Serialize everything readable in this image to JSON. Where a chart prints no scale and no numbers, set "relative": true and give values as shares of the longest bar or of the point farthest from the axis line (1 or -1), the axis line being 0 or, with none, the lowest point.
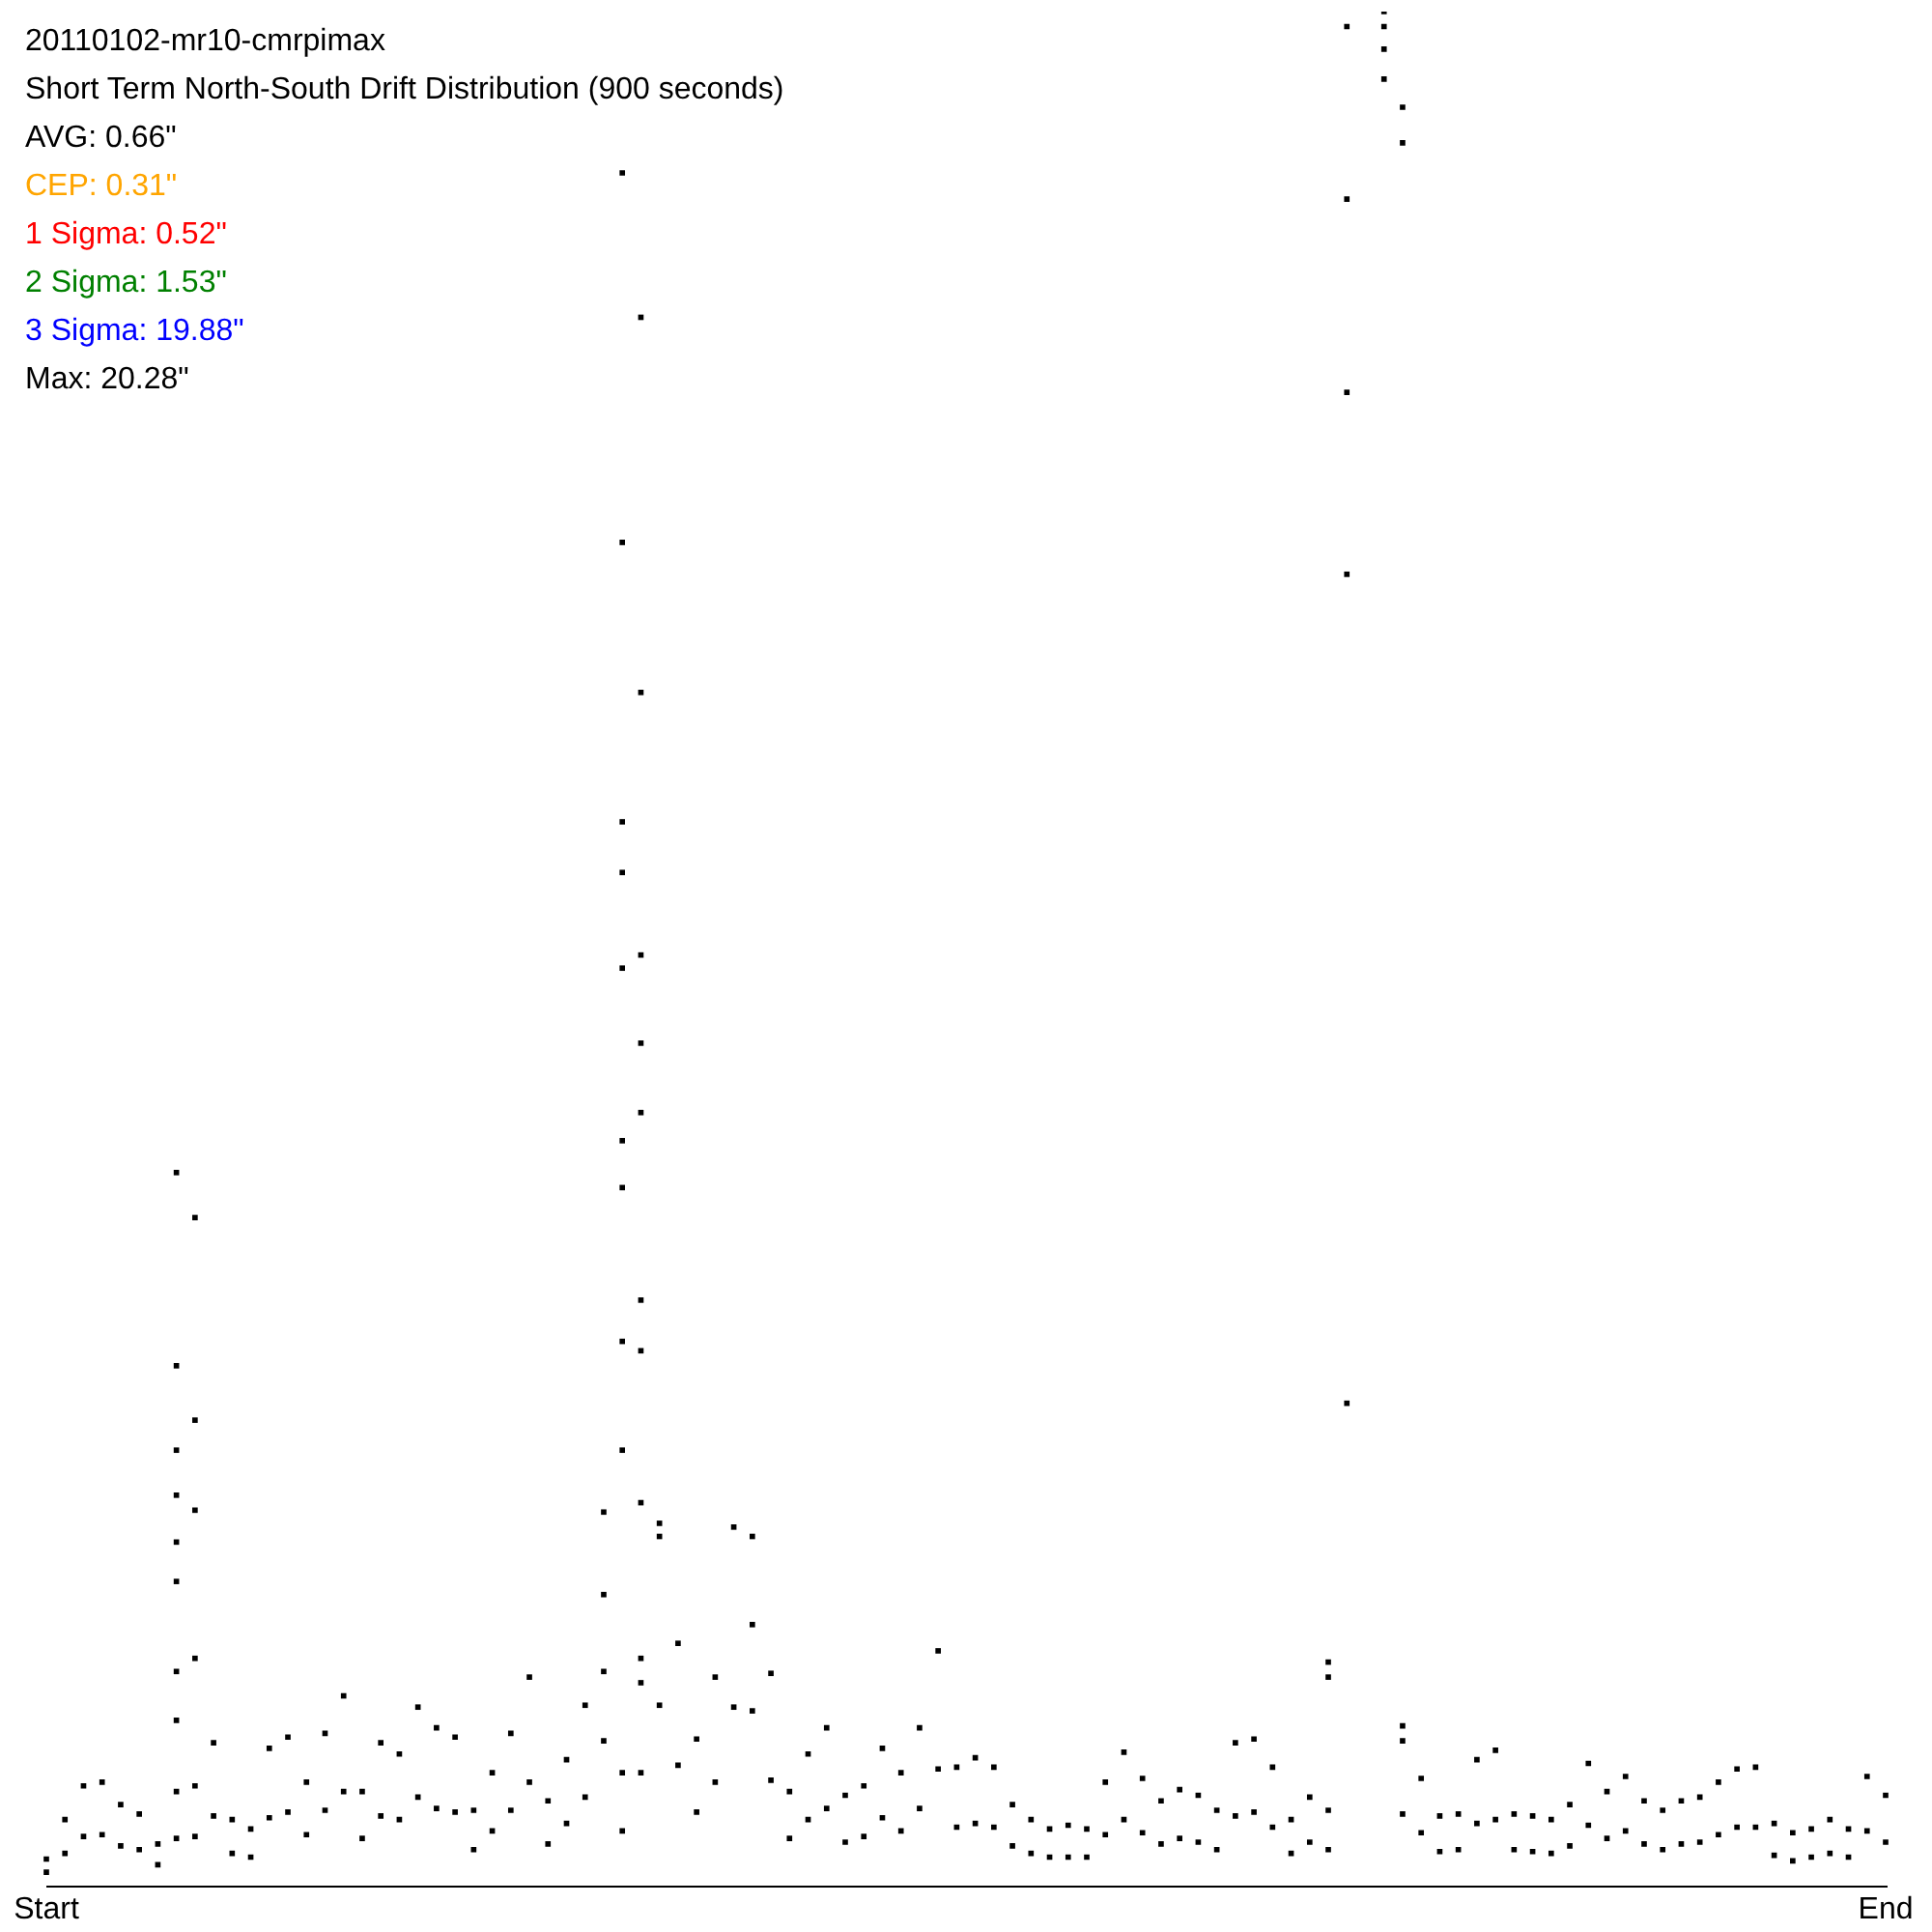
{
  "chart_data": {
    "type": "scatter",
    "title": "20110102-mr10-cmrpimax",
    "subtitle": "Short Term North-South Drift Distribution (900 seconds)",
    "annotations": [
      "AVG: 0.66\"",
      "CEP: 0.31\"",
      "1 Sigma: 0.52\"",
      "2 Sigma: 1.53\"",
      "3 Sigma: 19.88\"",
      "Max: 20.28\""
    ],
    "relative": true,
    "marker": "square",
    "categories": [
      "Start",
      null,
      null,
      null,
      null,
      null,
      null,
      null,
      null,
      null,
      null,
      null,
      null,
      null,
      null,
      null,
      null,
      null,
      null,
      null,
      null,
      null,
      null,
      null,
      null,
      null,
      null,
      null,
      null,
      null,
      null,
      null,
      null,
      null,
      null,
      null,
      null,
      null,
      null,
      null,
      null,
      null,
      null,
      null,
      null,
      null,
      null,
      null,
      null,
      null,
      null,
      null,
      null,
      null,
      null,
      null,
      null,
      null,
      null,
      null,
      null,
      null,
      null,
      null,
      null,
      null,
      null,
      null,
      null,
      null,
      null,
      null,
      null,
      null,
      null,
      null,
      null,
      null,
      null,
      null,
      null,
      null,
      null,
      null,
      null,
      null,
      null,
      null,
      null,
      null,
      null,
      null,
      null,
      null,
      null,
      null,
      null,
      null,
      null,
      "End"
    ],
    "series": [
      {
        "color": "#000000",
        "values": [
          0.015,
          0.036,
          0.054,
          0.056,
          0.044,
          0.039,
          0.023,
          0.051,
          0.054,
          0.077,
          0.036,
          0.031,
          0.074,
          0.08,
          0.056,
          0.082,
          0.102,
          0.051,
          0.077,
          0.071,
          0.096,
          0.085,
          0.08,
          0.041,
          0.061,
          0.082,
          0.112,
          0.046,
          0.068,
          0.097,
          0.156,
          0.061,
          0.122,
          0.194,
          0.13,
          0.079,
          0.112,
          0.192,
          0.187,
          0.114,
          0.051,
          0.071,
          0.085,
          0.049,
          0.054,
          0.074,
          0.061,
          0.085,
          0.126,
          0.064,
          0.069,
          0.064,
          0.044,
          0.036,
          0.031,
          0.033,
          0.031,
          0.056,
          0.072,
          0.058,
          0.046,
          0.052,
          0.049,
          0.041,
          0.077,
          0.079,
          0.064,
          0.036,
          0.048,
          0.041,
          0.992,
          null,
          1,
          0.078,
          0.058,
          0.038,
          0.039,
          0.068,
          0.073,
          0.039,
          0.038,
          0.036,
          0.044,
          0.066,
          0.051,
          0.059,
          0.046,
          0.041,
          0.046,
          0.048,
          0.056,
          0.063,
          0.064,
          0.034,
          0.029,
          0.031,
          0.036,
          0.031,
          0.059,
          0.049
        ]
      },
      {
        "color": "#000000",
        "values": [
          0.008,
          0.018,
          0.027,
          0.028,
          0.022,
          0.02,
          0.012,
          0.026,
          0.027,
          0.038,
          0.018,
          0.016,
          0.037,
          0.04,
          0.028,
          0.041,
          0.051,
          0.026,
          0.038,
          0.036,
          0.048,
          0.042,
          0.04,
          0.02,
          0.03,
          0.041,
          0.056,
          0.023,
          0.034,
          0.048,
          0.078,
          0.03,
          0.061,
          0.097,
          0.065,
          0.04,
          0.056,
          0.096,
          0.094,
          0.057,
          0.026,
          0.036,
          0.042,
          0.024,
          0.027,
          0.037,
          0.03,
          0.042,
          0.063,
          0.032,
          0.034,
          0.032,
          0.022,
          0.018,
          0.016,
          0.016,
          0.016,
          0.028,
          0.036,
          0.029,
          0.023,
          0.026,
          0.024,
          0.02,
          0.038,
          0.04,
          0.032,
          0.018,
          0.024,
          0.02,
          null,
          null,
          null,
          0.039,
          0.029,
          0.019,
          0.02,
          0.034,
          0.036,
          0.02,
          0.019,
          0.018,
          0.022,
          0.033,
          0.026,
          0.03,
          0.023,
          0.02,
          0.023,
          0.024,
          0.028,
          0.032,
          0.032,
          0.017,
          0.014,
          0.016,
          0.018,
          0.016,
          0.03,
          0.024
        ]
      },
      {
        "color": "#000000",
        "values": [
          null,
          null,
          null,
          null,
          null,
          null,
          null,
          0.381,
          0.357,
          null,
          null,
          null,
          null,
          null,
          null,
          null,
          null,
          null,
          null,
          null,
          null,
          null,
          null,
          null,
          null,
          null,
          null,
          null,
          null,
          null,
          0.2,
          0.914,
          0.837,
          0.187,
          null,
          null,
          null,
          null,
          0.14,
          null,
          null,
          null,
          null,
          null,
          null,
          null,
          null,
          null,
          null,
          null,
          null,
          null,
          null,
          null,
          null,
          null,
          null,
          null,
          null,
          null,
          null,
          null,
          null,
          null,
          null,
          null,
          null,
          null,
          null,
          0.12,
          0.9,
          null,
          0.992,
          0.949,
          null,
          null,
          null,
          null,
          null,
          null,
          null,
          null,
          null,
          null,
          null,
          null,
          null,
          null,
          null,
          null,
          null,
          null,
          null,
          null,
          null,
          null,
          null,
          null,
          null,
          null
        ]
      },
      {
        "color": "#000000",
        "values": [
          null,
          null,
          null,
          null,
          null,
          null,
          null,
          0.278,
          0.249,
          null,
          null,
          null,
          null,
          null,
          null,
          null,
          null,
          null,
          null,
          null,
          null,
          null,
          null,
          null,
          null,
          null,
          null,
          null,
          null,
          null,
          0.115,
          0.717,
          0.637,
          null,
          null,
          null,
          null,
          null,
          null,
          null,
          null,
          null,
          null,
          null,
          null,
          null,
          null,
          null,
          null,
          null,
          null,
          null,
          null,
          null,
          null,
          null,
          null,
          null,
          null,
          null,
          null,
          null,
          null,
          null,
          null,
          null,
          null,
          null,
          null,
          0.112,
          0.797,
          null,
          0.98,
          0.93,
          null,
          null,
          null,
          null,
          null,
          null,
          null,
          null,
          null,
          null,
          null,
          null,
          null,
          null,
          null,
          null,
          null,
          null,
          null,
          null,
          null,
          null,
          null,
          null,
          null,
          null
        ]
      },
      {
        "color": "#000000",
        "values": [
          null,
          null,
          null,
          null,
          null,
          null,
          null,
          0.233,
          0.201,
          null,
          null,
          null,
          null,
          null,
          null,
          null,
          null,
          null,
          null,
          null,
          null,
          null,
          null,
          null,
          null,
          null,
          null,
          null,
          null,
          null,
          null,
          0.568,
          0.497,
          null,
          null,
          null,
          null,
          null,
          null,
          null,
          null,
          null,
          null,
          null,
          null,
          null,
          null,
          null,
          null,
          null,
          null,
          null,
          null,
          null,
          null,
          null,
          null,
          null,
          null,
          null,
          null,
          null,
          null,
          null,
          null,
          null,
          null,
          null,
          null,
          null,
          0.7,
          null,
          0.964,
          0.086,
          null,
          null,
          null,
          null,
          null,
          null,
          null,
          null,
          null,
          null,
          null,
          null,
          null,
          null,
          null,
          null,
          null,
          null,
          null,
          null,
          null,
          null,
          null,
          null,
          null,
          null
        ]
      },
      {
        "color": "#000000",
        "values": [
          null,
          null,
          null,
          null,
          null,
          null,
          null,
          0.209,
          0.122,
          null,
          null,
          null,
          null,
          null,
          null,
          null,
          null,
          null,
          null,
          null,
          null,
          null,
          null,
          null,
          null,
          null,
          null,
          null,
          null,
          null,
          null,
          0.541,
          0.45,
          null,
          null,
          null,
          null,
          null,
          null,
          null,
          null,
          null,
          null,
          null,
          null,
          null,
          null,
          null,
          null,
          null,
          null,
          null,
          null,
          null,
          null,
          null,
          null,
          null,
          null,
          null,
          null,
          null,
          null,
          null,
          null,
          null,
          null,
          null,
          null,
          null,
          0.258,
          null,
          null,
          null,
          null,
          null,
          null,
          null,
          null,
          null,
          null,
          null,
          null,
          null,
          null,
          null,
          null,
          null,
          null,
          null,
          null,
          null,
          null,
          null,
          null,
          null,
          null,
          null,
          null,
          null
        ]
      },
      {
        "color": "#000000",
        "values": [
          null,
          null,
          null,
          null,
          null,
          null,
          null,
          0.184,
          null,
          null,
          null,
          null,
          null,
          null,
          null,
          null,
          null,
          null,
          null,
          null,
          null,
          null,
          null,
          null,
          null,
          null,
          null,
          null,
          null,
          null,
          null,
          0.49,
          0.413,
          null,
          null,
          null,
          null,
          null,
          null,
          null,
          null,
          null,
          null,
          null,
          null,
          null,
          null,
          null,
          null,
          null,
          null,
          null,
          null,
          null,
          null,
          null,
          null,
          null,
          null,
          null,
          null,
          null,
          null,
          null,
          null,
          null,
          null,
          null,
          null,
          null,
          null,
          null,
          null,
          null,
          null,
          null,
          null,
          null,
          null,
          null,
          null,
          null,
          null,
          null,
          null,
          null,
          null,
          null,
          null,
          null,
          null,
          null,
          null,
          null,
          null,
          null,
          null,
          null,
          null,
          null
        ]
      },
      {
        "color": "#000000",
        "values": [
          null,
          null,
          null,
          null,
          null,
          null,
          null,
          0.163,
          null,
          null,
          null,
          null,
          null,
          null,
          null,
          null,
          null,
          null,
          null,
          null,
          null,
          null,
          null,
          null,
          null,
          null,
          null,
          null,
          null,
          null,
          null,
          0.398,
          0.313,
          null,
          null,
          null,
          null,
          null,
          null,
          null,
          null,
          null,
          null,
          null,
          null,
          null,
          null,
          null,
          null,
          null,
          null,
          null,
          null,
          null,
          null,
          null,
          null,
          null,
          null,
          null,
          null,
          null,
          null,
          null,
          null,
          null,
          null,
          null,
          null,
          null,
          null,
          null,
          null,
          null,
          null,
          null,
          null,
          null,
          null,
          null,
          null,
          null,
          null,
          null,
          null,
          null,
          null,
          null,
          null,
          null,
          null,
          null,
          null,
          null,
          null,
          null,
          null,
          null,
          null,
          null
        ]
      },
      {
        "color": "#000000",
        "values": [
          null,
          null,
          null,
          null,
          null,
          null,
          null,
          0.115,
          null,
          null,
          null,
          null,
          null,
          null,
          null,
          null,
          null,
          null,
          null,
          null,
          null,
          null,
          null,
          null,
          null,
          null,
          null,
          null,
          null,
          null,
          null,
          0.373,
          0.286,
          null,
          null,
          null,
          null,
          null,
          null,
          null,
          null,
          null,
          null,
          null,
          null,
          null,
          null,
          null,
          null,
          null,
          null,
          null,
          null,
          null,
          null,
          null,
          null,
          null,
          null,
          null,
          null,
          null,
          null,
          null,
          null,
          null,
          null,
          null,
          null,
          null,
          null,
          null,
          null,
          null,
          null,
          null,
          null,
          null,
          null,
          null,
          null,
          null,
          null,
          null,
          null,
          null,
          null,
          null,
          null,
          null,
          null,
          null,
          null,
          null,
          null,
          null,
          null,
          null,
          null,
          null
        ]
      },
      {
        "color": "#000000",
        "values": [
          null,
          null,
          null,
          null,
          null,
          null,
          null,
          0.089,
          null,
          null,
          null,
          null,
          null,
          null,
          null,
          null,
          null,
          null,
          null,
          null,
          null,
          null,
          null,
          null,
          null,
          null,
          null,
          null,
          null,
          null,
          null,
          0.291,
          0.205,
          null,
          null,
          null,
          null,
          null,
          null,
          null,
          null,
          null,
          null,
          null,
          null,
          null,
          null,
          null,
          null,
          null,
          null,
          null,
          null,
          null,
          null,
          null,
          null,
          null,
          null,
          null,
          null,
          null,
          null,
          null,
          null,
          null,
          null,
          null,
          null,
          null,
          null,
          null,
          null,
          null,
          null,
          null,
          null,
          null,
          null,
          null,
          null,
          null,
          null,
          null,
          null,
          null,
          null,
          null,
          null,
          null,
          null,
          null,
          null,
          null,
          null,
          null,
          null,
          null,
          null,
          null
        ]
      },
      {
        "color": "#000000",
        "values": [
          null,
          null,
          null,
          null,
          null,
          null,
          null,
          null,
          null,
          null,
          null,
          null,
          null,
          null,
          null,
          null,
          null,
          null,
          null,
          null,
          null,
          null,
          null,
          null,
          null,
          null,
          null,
          null,
          null,
          null,
          null,
          0.233,
          0.109,
          null,
          null,
          null,
          null,
          null,
          null,
          null,
          null,
          null,
          null,
          null,
          null,
          null,
          null,
          null,
          null,
          null,
          null,
          null,
          null,
          null,
          null,
          null,
          null,
          null,
          null,
          null,
          null,
          null,
          null,
          null,
          null,
          null,
          null,
          null,
          null,
          null,
          null,
          null,
          null,
          null,
          null,
          null,
          null,
          null,
          null,
          null,
          null,
          null,
          null,
          null,
          null,
          null,
          null,
          null,
          null,
          null,
          null,
          null,
          null,
          null,
          null,
          null,
          null,
          null,
          null,
          null
        ]
      }
    ]
  }
}
